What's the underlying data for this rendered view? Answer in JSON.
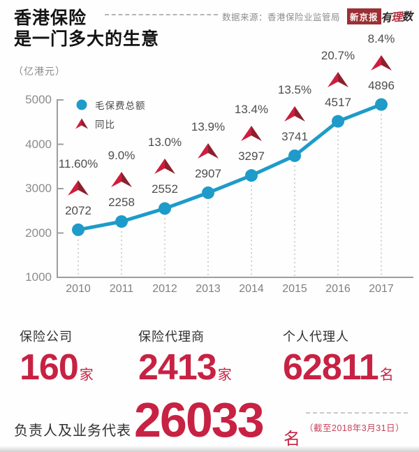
{
  "header": {
    "title_line1": "香港保险",
    "title_line2": "是一门多大的生意",
    "source_label": "数据来源：香港保险业监管局",
    "logo_bjnews": "新京报",
    "logo_youlishu_pre": "有",
    "logo_youlishu_mid": "理",
    "logo_youlishu_post": "数"
  },
  "chart_data": {
    "type": "line",
    "unit_label": "（亿港元）",
    "categories": [
      2010,
      2011,
      2012,
      2013,
      2014,
      2015,
      2016,
      2017
    ],
    "series": [
      {
        "name": "毛保费总额",
        "marker": "circle",
        "color": "#1e9bc9",
        "values": [
          2072,
          2258,
          2552,
          2907,
          3297,
          3741,
          4517,
          4896
        ]
      },
      {
        "name": "同比",
        "marker": "triangle",
        "color": "#ce1d3e",
        "values": [
          "11.60%",
          "9.0%",
          "13.0%",
          "13.9%",
          "13.4%",
          "13.5%",
          "20.7%",
          "8.4%"
        ]
      }
    ],
    "ylim": [
      1000,
      5000
    ],
    "yticks": [
      1000,
      2000,
      3000,
      4000,
      5000
    ],
    "legend_position": "top-left",
    "grid": false,
    "colors": {
      "line": "#1e9bc9",
      "triangle_bright": "#ce1d3e",
      "triangle_dark": "#8c202c",
      "axis": "#9e9e9e",
      "projection": "#c4c4c4"
    }
  },
  "stats": {
    "items": [
      {
        "label": "保险公司",
        "value": "160",
        "unit": "家"
      },
      {
        "label": "保险代理商",
        "value": "2413",
        "unit": "家"
      },
      {
        "label": "个人代理人",
        "value": "62811",
        "unit": "名"
      }
    ],
    "bottom": {
      "label": "负责人及业务代表",
      "value": "26033",
      "unit": "名",
      "note": "（截至2018年3月31日）"
    }
  }
}
